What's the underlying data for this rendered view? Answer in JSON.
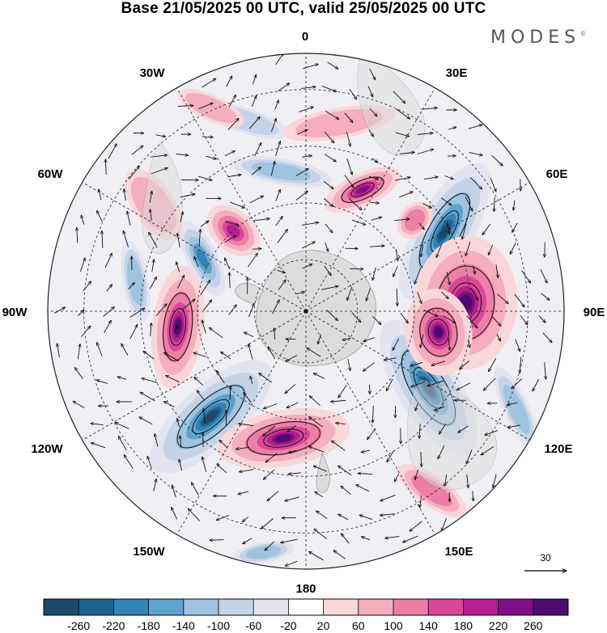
{
  "title": "Base 21/05/2025 00 UTC, valid 25/05/2025 00 UTC",
  "brand": {
    "name": "MODES",
    "mark": "©"
  },
  "map": {
    "projection": "south polar stereographic",
    "longitude_labels": {
      "0": "0",
      "30E": "30E",
      "60E": "60E",
      "90E": "90E",
      "120E": "120E",
      "150E": "150E",
      "180": "180",
      "150W": "150W",
      "120W": "120W",
      "90W": "90W",
      "60W": "60W",
      "30W": "30W"
    },
    "vector_reference": {
      "value": "30",
      "icon": "arrow-right-icon"
    }
  },
  "colorbar": {
    "ticks": [
      "-260",
      "-220",
      "-180",
      "-140",
      "-100",
      "-60",
      "-20",
      "20",
      "60",
      "100",
      "140",
      "180",
      "220",
      "260"
    ],
    "colors": [
      "#1b4a6b",
      "#1f628f",
      "#2f85b6",
      "#5fa3cc",
      "#9fc3e0",
      "#c5d3e8",
      "#e4e4f0",
      "#ffffff",
      "#f9d6da",
      "#f4aec0",
      "#ec7fa6",
      "#d9479a",
      "#b4208f",
      "#7e0f86",
      "#4d0b6f"
    ]
  },
  "features": {
    "positive": [
      {
        "lon": 10,
        "r": 0.74,
        "a": 0.22,
        "b": 0.06,
        "i": 1
      },
      {
        "lon": 25,
        "r": 0.52,
        "a": 0.16,
        "b": 0.065,
        "i": 5
      },
      {
        "lon": 50,
        "r": 0.55,
        "a": 0.08,
        "b": 0.06,
        "i": 2
      },
      {
        "lon": -42,
        "r": 0.42,
        "a": 0.12,
        "b": 0.08,
        "i": 4
      },
      {
        "lon": -55,
        "r": 0.72,
        "a": 0.16,
        "b": 0.08,
        "i": 1
      },
      {
        "lon": 87,
        "r": 0.62,
        "a": 0.26,
        "b": 0.2,
        "i": 6
      },
      {
        "lon": 99,
        "r": 0.52,
        "a": 0.17,
        "b": 0.13,
        "i": 7
      },
      {
        "lon": -97,
        "r": 0.5,
        "a": 0.24,
        "b": 0.1,
        "i": 7
      },
      {
        "lon": -170,
        "r": 0.5,
        "a": 0.26,
        "b": 0.11,
        "i": 7
      },
      {
        "lon": 145,
        "r": 0.85,
        "a": 0.16,
        "b": 0.06,
        "i": 2
      },
      {
        "lon": -25,
        "r": 0.87,
        "a": 0.14,
        "b": 0.05,
        "i": 1
      }
    ],
    "negative": [
      {
        "lon": -10,
        "r": 0.55,
        "a": 0.2,
        "b": 0.05,
        "i": 2
      },
      {
        "lon": -18,
        "r": 0.78,
        "a": 0.18,
        "b": 0.05,
        "i": 1
      },
      {
        "lon": -63,
        "r": 0.45,
        "a": 0.16,
        "b": 0.06,
        "i": 4
      },
      {
        "lon": -80,
        "r": 0.67,
        "a": 0.16,
        "b": 0.05,
        "i": 2
      },
      {
        "lon": 60,
        "r": 0.62,
        "a": 0.3,
        "b": 0.11,
        "i": 7
      },
      {
        "lon": 122,
        "r": 0.56,
        "a": 0.3,
        "b": 0.12,
        "i": 7
      },
      {
        "lon": -138,
        "r": 0.55,
        "a": 0.3,
        "b": 0.12,
        "i": 7
      },
      {
        "lon": -170,
        "r": 0.95,
        "a": 0.12,
        "b": 0.04,
        "i": 2
      },
      {
        "lon": 115,
        "r": 0.9,
        "a": 0.18,
        "b": 0.05,
        "i": 2
      }
    ]
  }
}
